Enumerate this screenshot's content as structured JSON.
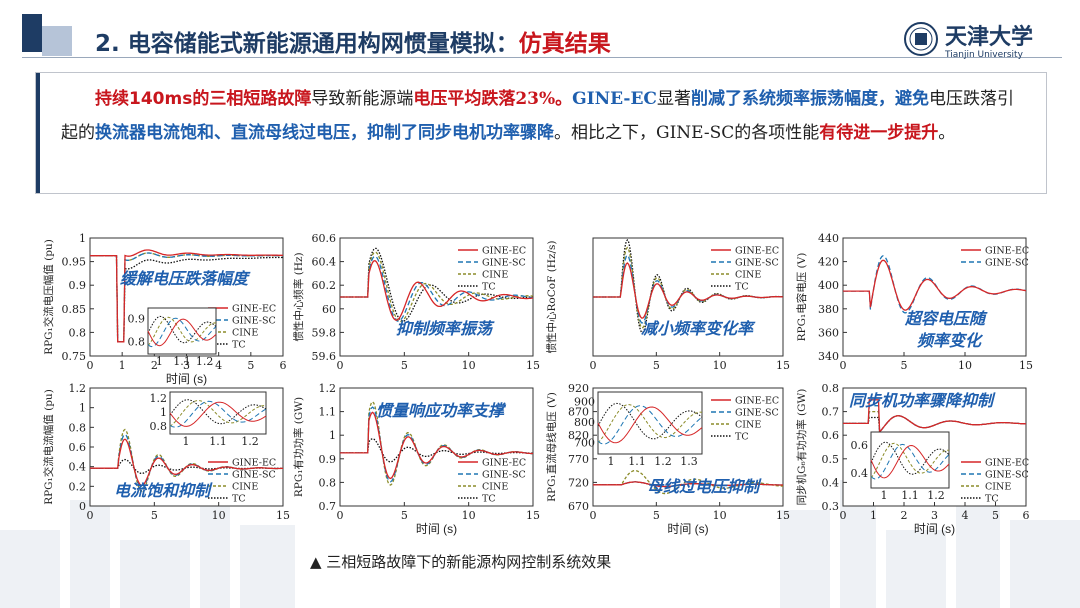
{
  "header": {
    "title_main": "2. 电容储能式新能源通用构网惯量模拟：",
    "title_accent": "仿真结果",
    "logo_cn": "天津大学",
    "logo_en": "Tianjin University"
  },
  "summary": {
    "segments": [
      {
        "t": "持续140ms的三相短路故障",
        "s": "r"
      },
      {
        "t": "导致新能源端",
        "s": ""
      },
      {
        "t": "电压平均跌落",
        "s": "r"
      },
      {
        "t": "23%。",
        "s": "r serif"
      },
      {
        "t": "GINE-EC",
        "s": "b serif"
      },
      {
        "t": "显著",
        "s": ""
      },
      {
        "t": "削减了系统频率振荡幅度，",
        "s": "b"
      },
      {
        "t": "避免",
        "s": "b"
      },
      {
        "t": "电压跌落引起的",
        "s": ""
      },
      {
        "t": "换流器电流饱和、直流母线过电压，抑制了同步电机功率骤降",
        "s": "b"
      },
      {
        "t": "。相比之下，",
        "s": ""
      },
      {
        "t": "GINE-SC",
        "s": "serif"
      },
      {
        "t": "的各项性能",
        "s": ""
      },
      {
        "t": "有待进一步提升",
        "s": "r"
      },
      {
        "t": "。",
        "s": ""
      }
    ]
  },
  "caption": "▲ 三相短路故障下的新能源构网控制系统效果",
  "colors": {
    "navy": "#1e3c64",
    "red": "#c8161d",
    "blue": "#1f5fae",
    "ec": "#d62728",
    "sc": "#1f77b4",
    "cine": "#8c8c2a",
    "tc": "#111111"
  },
  "series_names": [
    "GINE-EC",
    "GINE-SC",
    "CINE",
    "TC"
  ],
  "chart_data": [
    {
      "type": "line",
      "ylabel": "RPG₁交流电压幅值 (pu)",
      "xlabel": "时间 (s)",
      "xlim": [
        0,
        6
      ],
      "ylim": [
        0.75,
        1.0
      ],
      "xticks": [
        "0",
        "1",
        "2",
        "3",
        "4",
        "5",
        "6"
      ],
      "yticks": [
        "0.75",
        "0.8",
        "0.85",
        "0.9",
        "0.95",
        "1"
      ],
      "annotation": "缓解电压跌落幅度",
      "inset_xticks": [
        "1",
        "1.1",
        "1.2"
      ],
      "inset_yticks": [
        "0.9",
        "0.8"
      ]
    },
    {
      "type": "line",
      "ylabel": "惯性中心频率 (Hz)",
      "xlabel": "",
      "xlim": [
        0,
        15
      ],
      "ylim": [
        59.5,
        60.6
      ],
      "xticks": [
        "0",
        "5",
        "10",
        "15"
      ],
      "yticks": [
        "59.6",
        "59.8",
        "60",
        "60.2",
        "60.4",
        "60.6"
      ],
      "annotation": "抑制频率振荡"
    },
    {
      "type": "line",
      "ylabel": "惯性中心RoCoF (Hz/s)",
      "xlabel": "",
      "xlim": [
        0,
        15
      ],
      "xticks": [
        "0",
        "5",
        "10",
        "15"
      ],
      "yticks": [],
      "annotation": "减小频率变化率"
    },
    {
      "type": "line",
      "ylabel": "RPG₁电容电压 (V)",
      "xlabel": "",
      "xlim": [
        0,
        15
      ],
      "ylim": [
        330,
        440
      ],
      "xticks": [
        "0",
        "5",
        "10",
        "15"
      ],
      "yticks": [
        "340",
        "360",
        "380",
        "400",
        "420",
        "440"
      ],
      "annotation": "超容电压随频率变化",
      "annotation_lines": [
        "超容电压随",
        "频率变化"
      ]
    },
    {
      "type": "line",
      "ylabel": "RPG₁交流电流幅值 (pu)",
      "xlabel": "",
      "xlim": [
        0,
        15
      ],
      "ylim": [
        0,
        1.2
      ],
      "xticks": [
        "0",
        "5",
        "10",
        "15"
      ],
      "yticks": [
        "0",
        "0.2",
        "0.4",
        "0.6",
        "0.8",
        "1",
        "1.2"
      ],
      "annotation": "电流饱和抑制",
      "inset_xticks": [
        "1",
        "1.1",
        "1.2"
      ],
      "inset_yticks": [
        "1.2",
        "1",
        "0.8"
      ]
    },
    {
      "type": "line",
      "ylabel": "RPG₁有功功率 (GW)",
      "xlabel": "时间 (s)",
      "xlim": [
        0,
        15
      ],
      "ylim": [
        0.7,
        1.2
      ],
      "xticks": [
        "0",
        "5",
        "10",
        "15"
      ],
      "yticks": [
        "0.7",
        "0.8",
        "0.9",
        "1",
        "1.1",
        "1.2"
      ],
      "annotation": "惯量响应功率支撑"
    },
    {
      "type": "line",
      "ylabel": "RPG₁直流母线电压 (V)",
      "xlabel": "时间 (s)",
      "xlim": [
        0,
        15
      ],
      "ylim": [
        670,
        920
      ],
      "xticks": [
        "0",
        "5",
        "10",
        "15"
      ],
      "yticks": [
        "670",
        "720",
        "770",
        "820",
        "870",
        "920"
      ],
      "annotation": "母线过电压抑制",
      "inset_xticks": [
        "1",
        "1.1",
        "1.2",
        "1.3"
      ],
      "inset_yticks": [
        "900",
        "800",
        "700"
      ]
    },
    {
      "type": "line",
      "ylabel": "同步机G₆有功功率 (GW)",
      "xlabel": "时间 (s)",
      "xlim": [
        0,
        6
      ],
      "ylim": [
        0.3,
        0.8
      ],
      "xticks": [
        "0",
        "1",
        "2",
        "3",
        "4",
        "5",
        "6"
      ],
      "yticks": [
        "0.3",
        "0.4",
        "0.5",
        "0.6",
        "0.7",
        "0.8"
      ],
      "annotation": "同步机功率骤降抑制",
      "inset_xticks": [
        "1",
        "1.1",
        "1.2"
      ],
      "inset_yticks": [
        "0.6",
        "0.4"
      ]
    }
  ]
}
